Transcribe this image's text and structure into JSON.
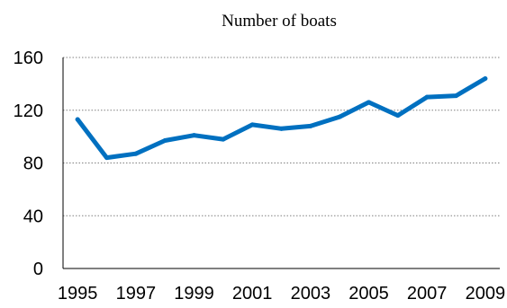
{
  "chart_data": {
    "type": "line",
    "title": "Number of boats",
    "xlabel": "",
    "ylabel": "",
    "x": [
      1995,
      1996,
      1997,
      1998,
      1999,
      2000,
      2001,
      2002,
      2003,
      2004,
      2005,
      2006,
      2007,
      2008,
      2009
    ],
    "series": [
      {
        "values": [
          113,
          84,
          87,
          97,
          101,
          98,
          109,
          106,
          108,
          115,
          126,
          116,
          130,
          131,
          144
        ],
        "color": "#0070C0"
      }
    ],
    "ylim": [
      0,
      160
    ],
    "yticks": [
      "0",
      "40",
      "80",
      "120",
      "160"
    ],
    "xticks": [
      "1995",
      "1997",
      "1999",
      "2001",
      "2003",
      "2005",
      "2007",
      "2009"
    ],
    "grid": "horizontal dotted"
  }
}
